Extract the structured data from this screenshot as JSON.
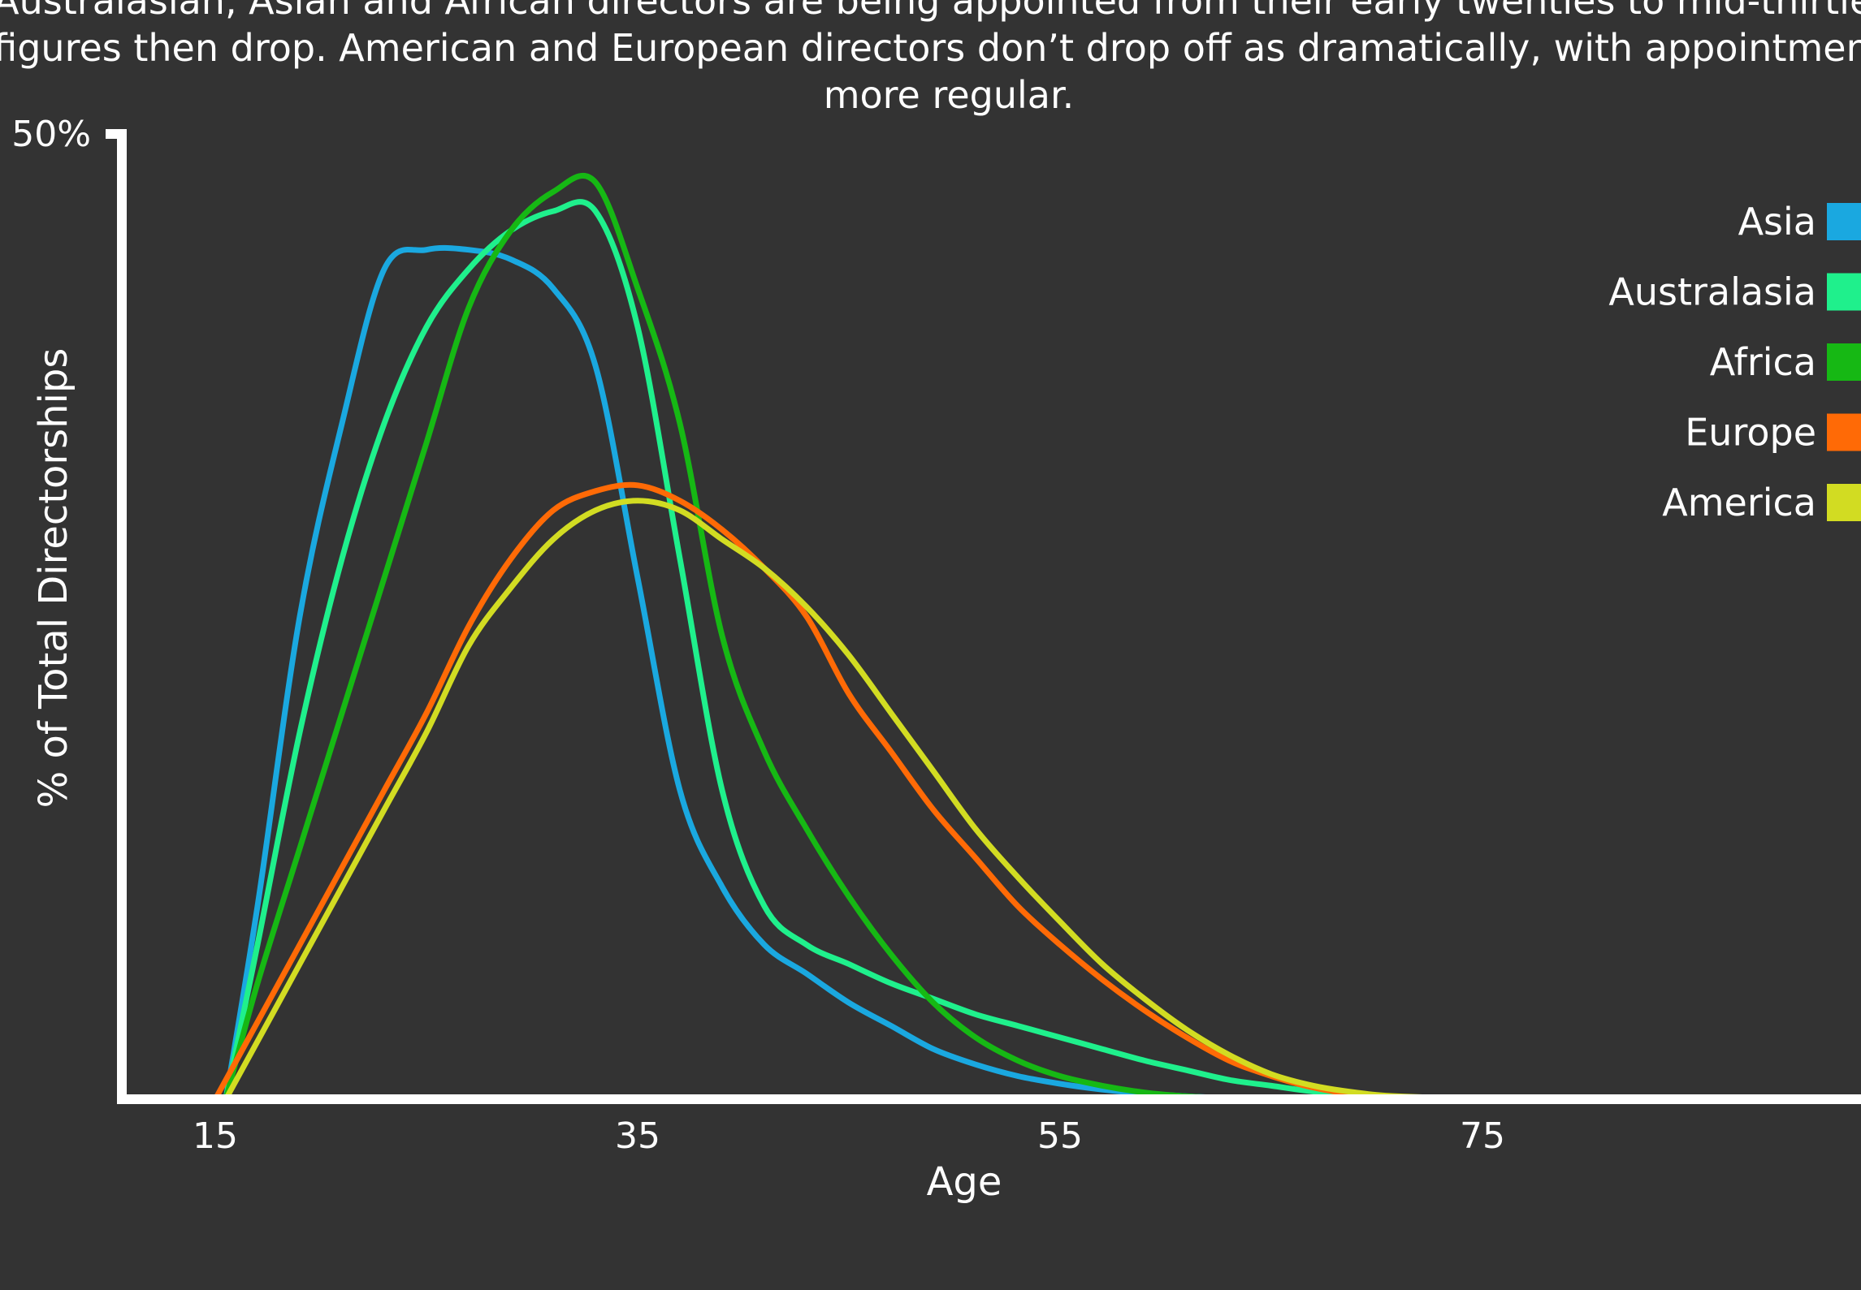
{
  "subtitle_lines": [
    "Australasian, Asian and African directors are being appointed from their early twenties to mid-thirties,",
    "figures then drop. American and European directors don’t drop off as dramatically, with appointments",
    "more regular."
  ],
  "chart_data": {
    "type": "line",
    "title": "",
    "xlabel": "Age",
    "ylabel": "% of Total Directorships",
    "x_ticks": [
      15,
      35,
      55,
      75
    ],
    "y_top_label": "50%",
    "xlim": [
      10.5,
      87
    ],
    "ylim": [
      0,
      50
    ],
    "grid": false,
    "legend_position": "top-right",
    "series": [
      {
        "name": "Asia",
        "color": "#1aa8e0",
        "points": [
          [
            15.5,
            0
          ],
          [
            17,
            10
          ],
          [
            19,
            25
          ],
          [
            21,
            35
          ],
          [
            23,
            43
          ],
          [
            25,
            44
          ],
          [
            27,
            44
          ],
          [
            29,
            43.5
          ],
          [
            31,
            42
          ],
          [
            33,
            38
          ],
          [
            35,
            27
          ],
          [
            37,
            16
          ],
          [
            39,
            11
          ],
          [
            41,
            8
          ],
          [
            43,
            6.5
          ],
          [
            45,
            5
          ],
          [
            47,
            3.8
          ],
          [
            49,
            2.6
          ],
          [
            51,
            1.8
          ],
          [
            53,
            1.2
          ],
          [
            55,
            0.8
          ],
          [
            57,
            0.5
          ],
          [
            59,
            0.3
          ],
          [
            61,
            0.15
          ],
          [
            63,
            0.05
          ],
          [
            64,
            0
          ]
        ]
      },
      {
        "name": "Australasia",
        "color": "#1ff08c",
        "points": [
          [
            15.5,
            0
          ],
          [
            17,
            8
          ],
          [
            19,
            19
          ],
          [
            21,
            28
          ],
          [
            23,
            35
          ],
          [
            25,
            40
          ],
          [
            27,
            43
          ],
          [
            29,
            45
          ],
          [
            31,
            46
          ],
          [
            33,
            46
          ],
          [
            35,
            40
          ],
          [
            37,
            28
          ],
          [
            39,
            16
          ],
          [
            41,
            10
          ],
          [
            43,
            8
          ],
          [
            45,
            7
          ],
          [
            47,
            6
          ],
          [
            49,
            5.2
          ],
          [
            51,
            4.4
          ],
          [
            53,
            3.8
          ],
          [
            55,
            3.2
          ],
          [
            57,
            2.6
          ],
          [
            59,
            2
          ],
          [
            61,
            1.5
          ],
          [
            63,
            1
          ],
          [
            65,
            0.7
          ],
          [
            67,
            0.4
          ],
          [
            70,
            0.15
          ],
          [
            75,
            0
          ]
        ]
      },
      {
        "name": "Africa",
        "color": "#16b814",
        "points": [
          [
            15.5,
            0
          ],
          [
            17,
            6
          ],
          [
            19,
            13
          ],
          [
            21,
            20
          ],
          [
            23,
            27
          ],
          [
            25,
            34
          ],
          [
            27,
            41
          ],
          [
            29,
            45
          ],
          [
            31,
            47
          ],
          [
            33,
            47.5
          ],
          [
            35,
            42
          ],
          [
            37,
            35
          ],
          [
            39,
            24
          ],
          [
            41,
            18
          ],
          [
            43,
            14
          ],
          [
            45,
            10.5
          ],
          [
            47,
            7.5
          ],
          [
            49,
            5
          ],
          [
            51,
            3.2
          ],
          [
            53,
            2
          ],
          [
            55,
            1.2
          ],
          [
            57,
            0.7
          ],
          [
            59,
            0.35
          ],
          [
            61,
            0.15
          ],
          [
            63,
            0.05
          ],
          [
            65,
            0
          ]
        ]
      },
      {
        "name": "Europe",
        "color": "#ff6a06",
        "points": [
          [
            15,
            0
          ],
          [
            17,
            4
          ],
          [
            19,
            8
          ],
          [
            21,
            12
          ],
          [
            23,
            16
          ],
          [
            25,
            20
          ],
          [
            27,
            24.5
          ],
          [
            29,
            28
          ],
          [
            31,
            30.5
          ],
          [
            33,
            31.5
          ],
          [
            35,
            31.8
          ],
          [
            37,
            31
          ],
          [
            39,
            29.5
          ],
          [
            41,
            27.5
          ],
          [
            43,
            25
          ],
          [
            45,
            21
          ],
          [
            47,
            18
          ],
          [
            49,
            15
          ],
          [
            51,
            12.5
          ],
          [
            53,
            10
          ],
          [
            55,
            8
          ],
          [
            57,
            6.2
          ],
          [
            59,
            4.6
          ],
          [
            61,
            3.2
          ],
          [
            63,
            2
          ],
          [
            65,
            1.2
          ],
          [
            67,
            0.6
          ],
          [
            69,
            0.25
          ],
          [
            71,
            0.1
          ],
          [
            75,
            0
          ]
        ]
      },
      {
        "name": "America",
        "color": "#d2dc22",
        "points": [
          [
            15.5,
            0
          ],
          [
            17,
            3
          ],
          [
            19,
            7
          ],
          [
            21,
            11
          ],
          [
            23,
            15
          ],
          [
            25,
            19
          ],
          [
            27,
            23.5
          ],
          [
            29,
            26.5
          ],
          [
            31,
            29
          ],
          [
            33,
            30.5
          ],
          [
            35,
            31
          ],
          [
            37,
            30.5
          ],
          [
            39,
            29
          ],
          [
            41,
            27.5
          ],
          [
            43,
            25.5
          ],
          [
            45,
            23
          ],
          [
            47,
            20
          ],
          [
            49,
            17
          ],
          [
            51,
            14
          ],
          [
            53,
            11.5
          ],
          [
            55,
            9.2
          ],
          [
            57,
            7
          ],
          [
            59,
            5.2
          ],
          [
            61,
            3.6
          ],
          [
            63,
            2.3
          ],
          [
            65,
            1.3
          ],
          [
            67,
            0.7
          ],
          [
            69,
            0.35
          ],
          [
            71,
            0.15
          ],
          [
            75,
            0.05
          ],
          [
            85,
            0
          ],
          [
            87,
            0.1
          ]
        ]
      }
    ]
  }
}
